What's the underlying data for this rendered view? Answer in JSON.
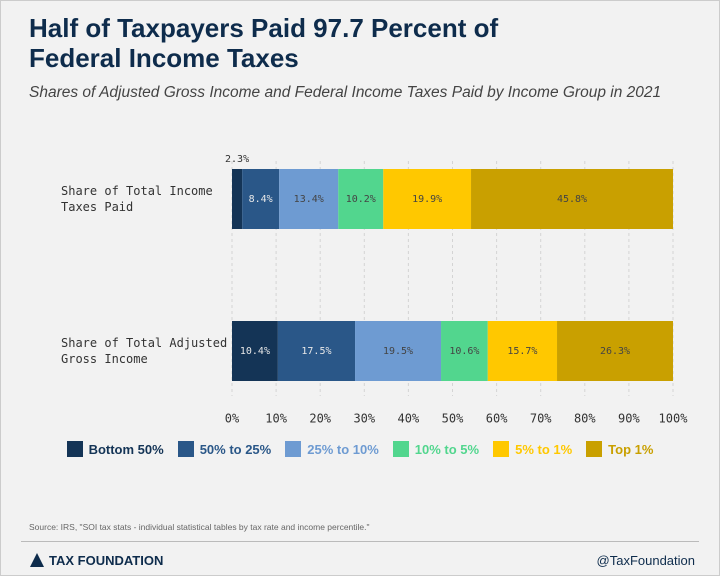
{
  "chart_data": {
    "type": "stacked-barh",
    "title": "Half of Taxpayers Paid 97.7 Percent of Federal Income Taxes",
    "subtitle": "Shares of Adjusted Gross Income and Federal Income Taxes Paid by Income Group in 2021",
    "categories": [
      "Share of Total Income Taxes Paid",
      "Share of Total Adjusted Gross Income"
    ],
    "series": [
      {
        "name": "Bottom 50%",
        "color": "#143456",
        "values": [
          2.3,
          10.4
        ],
        "value_labels": [
          "2.3%",
          "10.4%"
        ]
      },
      {
        "name": "50% to 25%",
        "color": "#2a5788",
        "values": [
          8.4,
          17.5
        ],
        "value_labels": [
          "8.4%",
          "17.5%"
        ]
      },
      {
        "name": "25% to 10%",
        "color": "#6e9bd2",
        "values": [
          13.4,
          19.5
        ],
        "value_labels": [
          "13.4%",
          "19.5%"
        ]
      },
      {
        "name": "10% to 5%",
        "color": "#52d68e",
        "values": [
          10.2,
          10.6
        ],
        "value_labels": [
          "10.2%",
          "10.6%"
        ]
      },
      {
        "name": "5% to 1%",
        "color": "#ffc800",
        "values": [
          19.9,
          15.7
        ],
        "value_labels": [
          "19.9%",
          "15.7%"
        ]
      },
      {
        "name": "Top 1%",
        "color": "#c9a000",
        "values": [
          45.8,
          26.3
        ],
        "value_labels": [
          "45.8%",
          "26.3%"
        ]
      }
    ],
    "xlim": [
      0,
      100
    ],
    "xticks": [
      {
        "value": 0,
        "label": "0%"
      },
      {
        "value": 10,
        "label": "10%"
      },
      {
        "value": 20,
        "label": "20%"
      },
      {
        "value": 30,
        "label": "30%"
      },
      {
        "value": 40,
        "label": "40%"
      },
      {
        "value": 50,
        "label": "50%"
      },
      {
        "value": 60,
        "label": "60%"
      },
      {
        "value": 70,
        "label": "70%"
      },
      {
        "value": 80,
        "label": "80%"
      },
      {
        "value": 90,
        "label": "90%"
      },
      {
        "value": 100,
        "label": "100%"
      }
    ],
    "grid": true,
    "source": "Source: IRS, \"SOI tax stats - individual statistical tables by tax rate and income percentile.\""
  },
  "footer": {
    "brand": "TAX FOUNDATION",
    "handle": "@TaxFoundation"
  }
}
